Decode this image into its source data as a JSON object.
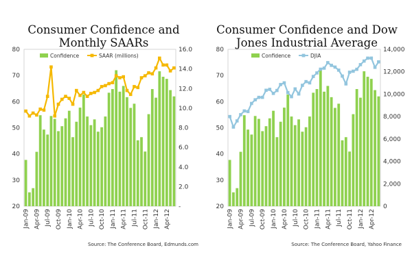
{
  "chart_data": [
    {
      "id": "left",
      "type": "bar+line",
      "title": "Consumer Confidence and Monthly SAARs",
      "title_lines": [
        "Consumer Confidence and",
        "Monthly SAARs"
      ],
      "categories": [
        "Jan-09",
        "Feb-09",
        "Mar-09",
        "Apr-09",
        "May-09",
        "Jun-09",
        "Jul-09",
        "Aug-09",
        "Sep-09",
        "Oct-09",
        "Nov-09",
        "Dec-09",
        "Jan-10",
        "Feb-10",
        "Mar-10",
        "Apr-10",
        "May-10",
        "Jun-10",
        "Jul-10",
        "Aug-10",
        "Sep-10",
        "Oct-10",
        "Nov-10",
        "Dec-10",
        "Jan-11",
        "Feb-11",
        "Mar-11",
        "Apr-11",
        "May-11",
        "Jun-11",
        "Jul-11",
        "Aug-11",
        "Sep-11",
        "Oct-11",
        "Nov-11",
        "Dec-11",
        "Jan-12",
        "Feb-12",
        "Mar-12",
        "Apr-12",
        "May-12",
        "Jun-12"
      ],
      "tick_labels": [
        "Jan-09",
        "Apr-09",
        "Jul-09",
        "Oct-09",
        "Jan-10",
        "Apr-10",
        "Jul-10",
        "Oct-10",
        "Jan-11",
        "Apr-11",
        "Jul-11",
        "Oct-11",
        "Jan-12",
        "Apr-12"
      ],
      "series": [
        {
          "name": "Confidence",
          "kind": "bar",
          "axis": "left",
          "color": "#8fd14f",
          "values": [
            37.7,
            25.3,
            26.9,
            40.8,
            54.8,
            49.3,
            47.4,
            54.5,
            53.4,
            48.7,
            50.6,
            53.6,
            56.5,
            46.4,
            52.3,
            57.7,
            62.7,
            54.3,
            51.0,
            53.2,
            48.5,
            50.2,
            54.3,
            63.4,
            64.8,
            72.0,
            63.8,
            66.0,
            61.7,
            57.6,
            59.2,
            45.2,
            46.4,
            40.9,
            55.2,
            64.8,
            61.5,
            71.6,
            69.5,
            68.7,
            64.4,
            62.0
          ]
        },
        {
          "name": "SAAR (millions)",
          "kind": "line",
          "axis": "right",
          "color": "#f5b800",
          "values": [
            9.7,
            9.2,
            9.5,
            9.3,
            9.9,
            9.8,
            11.2,
            14.2,
            9.2,
            10.4,
            10.9,
            11.2,
            11.0,
            10.4,
            11.8,
            11.3,
            11.6,
            11.2,
            11.5,
            11.6,
            11.8,
            12.2,
            12.3,
            12.5,
            12.6,
            13.3,
            13.1,
            13.2,
            11.8,
            11.4,
            12.2,
            12.1,
            13.1,
            13.3,
            13.6,
            13.5,
            14.1,
            15.1,
            14.4,
            14.4,
            13.8,
            14.1
          ]
        }
      ],
      "y_left": {
        "min": 20,
        "max": 80,
        "step": 10,
        "tick_labels": [
          "20",
          "30",
          "40",
          "50",
          "60",
          "70",
          "80"
        ]
      },
      "y_right": {
        "min": 0,
        "max": 16,
        "step": 2,
        "tick_labels": [
          "-",
          "2.0",
          "4.0",
          "6.0",
          "8.0",
          "10.0",
          "12.0",
          "14.0",
          "16.0"
        ]
      },
      "source": "Source: The Conference Board, Edmunds.com"
    },
    {
      "id": "right",
      "type": "bar+line",
      "title": "Consumer Confidence and Dow Jones Industrial Average",
      "title_lines": [
        "Consumer Confidence and Dow",
        "Jones Industrial Average"
      ],
      "categories": [
        "Jan-09",
        "Feb-09",
        "Mar-09",
        "Apr-09",
        "May-09",
        "Jun-09",
        "Jul-09",
        "Aug-09",
        "Sep-09",
        "Oct-09",
        "Nov-09",
        "Dec-09",
        "Jan-10",
        "Feb-10",
        "Mar-10",
        "Apr-10",
        "May-10",
        "Jun-10",
        "Jul-10",
        "Aug-10",
        "Sep-10",
        "Oct-10",
        "Nov-10",
        "Dec-10",
        "Jan-11",
        "Feb-11",
        "Mar-11",
        "Apr-11",
        "May-11",
        "Jun-11",
        "Jul-11",
        "Aug-11",
        "Sep-11",
        "Oct-11",
        "Nov-11",
        "Dec-11",
        "Jan-12",
        "Feb-12",
        "Mar-12",
        "Apr-12",
        "May-12",
        "Jun-12"
      ],
      "tick_labels": [
        "Jan-09",
        "Apr-09",
        "Jul-09",
        "Oct-09",
        "Jan-10",
        "Apr-10",
        "Jul-10",
        "Oct-10",
        "Jan-11",
        "Apr-11",
        "Jul-11",
        "Oct-11",
        "Jan-12",
        "Apr-12"
      ],
      "series": [
        {
          "name": "Confidence",
          "kind": "bar",
          "axis": "left",
          "color": "#8fd14f",
          "values": [
            37.7,
            25.3,
            26.9,
            40.8,
            54.8,
            49.3,
            47.4,
            54.5,
            53.4,
            48.7,
            50.6,
            53.6,
            56.5,
            46.4,
            52.3,
            57.7,
            62.7,
            54.3,
            51.0,
            53.2,
            48.5,
            50.2,
            54.3,
            63.4,
            64.8,
            72.0,
            63.8,
            66.0,
            61.7,
            57.6,
            59.2,
            45.2,
            46.4,
            40.9,
            55.2,
            64.8,
            61.5,
            71.6,
            69.5,
            68.7,
            64.4,
            62.0
          ]
        },
        {
          "name": "DJIA",
          "kind": "line",
          "axis": "right",
          "color": "#92c5de",
          "values": [
            8000,
            7062,
            7609,
            8168,
            8500,
            8447,
            9171,
            9496,
            9712,
            9713,
            10344,
            10428,
            10067,
            10325,
            10857,
            11008,
            10137,
            9774,
            10466,
            10015,
            10788,
            11118,
            11006,
            11578,
            11892,
            12226,
            12320,
            12811,
            12570,
            12414,
            12143,
            11614,
            10913,
            11955,
            12046,
            12218,
            12633,
            12952,
            13212,
            13214,
            12393,
            12880
          ]
        }
      ],
      "y_left": {
        "min": 20,
        "max": 80,
        "step": 10,
        "tick_labels": [
          "20",
          "30",
          "40",
          "50",
          "60",
          "70",
          "80"
        ]
      },
      "y_right": {
        "min": 0,
        "max": 14000,
        "step": 2000,
        "tick_labels": [
          "0",
          "2,000",
          "4,000",
          "6,000",
          "8,000",
          "10,000",
          "12,000",
          "14,000"
        ]
      },
      "source": "Source: The Conference Board, Yahoo Finance"
    }
  ]
}
